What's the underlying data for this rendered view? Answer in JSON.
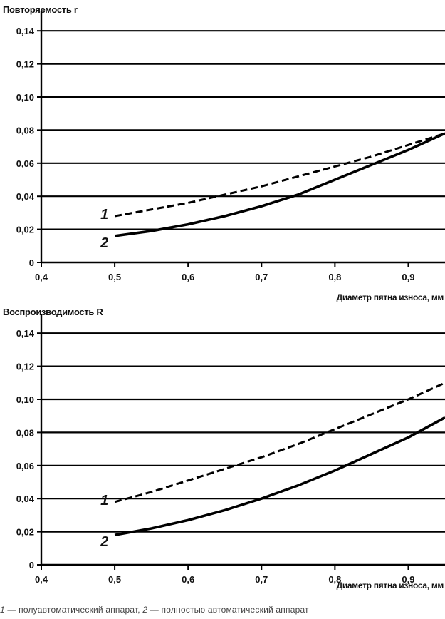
{
  "chart_data": [
    {
      "type": "line",
      "ylabel": "Повторяемость r",
      "xlabel": "Диаметр пятна износа, мм",
      "xlim": [
        0.4,
        0.95
      ],
      "ylim": [
        0,
        0.15
      ],
      "x_ticks": [
        "0,4",
        "0,5",
        "0,6",
        "0,7",
        "0,8",
        "0,9"
      ],
      "y_ticks": [
        "0",
        "0,02",
        "0,04",
        "0,06",
        "0,08",
        "0,10",
        "0,12",
        "0,14"
      ],
      "grid": "horizontal",
      "series": [
        {
          "name": "1",
          "style": "dashed",
          "x": [
            0.5,
            0.55,
            0.6,
            0.65,
            0.7,
            0.75,
            0.8,
            0.85,
            0.9,
            0.95
          ],
          "y": [
            0.028,
            0.032,
            0.036,
            0.041,
            0.046,
            0.052,
            0.058,
            0.064,
            0.071,
            0.078
          ]
        },
        {
          "name": "2",
          "style": "solid",
          "x": [
            0.5,
            0.55,
            0.6,
            0.65,
            0.7,
            0.75,
            0.8,
            0.85,
            0.9,
            0.95
          ],
          "y": [
            0.016,
            0.019,
            0.023,
            0.028,
            0.034,
            0.041,
            0.05,
            0.059,
            0.068,
            0.078
          ]
        }
      ]
    },
    {
      "type": "line",
      "ylabel": "Воспроизводимость R",
      "xlabel": "Диаметр пятна износа, мм",
      "xlim": [
        0.4,
        0.95
      ],
      "ylim": [
        0,
        0.15
      ],
      "x_ticks": [
        "0,4",
        "0,5",
        "0,6",
        "0,7",
        "0,8",
        "0,9"
      ],
      "y_ticks": [
        "0",
        "0,02",
        "0,04",
        "0,06",
        "0,08",
        "0,10",
        "0,12",
        "0,14"
      ],
      "grid": "horizontal",
      "series": [
        {
          "name": "1",
          "style": "dashed",
          "x": [
            0.5,
            0.55,
            0.6,
            0.65,
            0.7,
            0.75,
            0.8,
            0.85,
            0.9,
            0.95
          ],
          "y": [
            0.038,
            0.044,
            0.051,
            0.058,
            0.065,
            0.073,
            0.082,
            0.091,
            0.1,
            0.11
          ]
        },
        {
          "name": "2",
          "style": "solid",
          "x": [
            0.5,
            0.55,
            0.6,
            0.65,
            0.7,
            0.75,
            0.8,
            0.85,
            0.9,
            0.95
          ],
          "y": [
            0.018,
            0.022,
            0.027,
            0.033,
            0.04,
            0.048,
            0.057,
            0.067,
            0.077,
            0.089
          ]
        }
      ]
    }
  ],
  "footnote": {
    "n1": "1",
    "t1": " — полуавтоматический аппарат, ",
    "n2": "2",
    "t2": " — полностью автоматический аппарат"
  }
}
